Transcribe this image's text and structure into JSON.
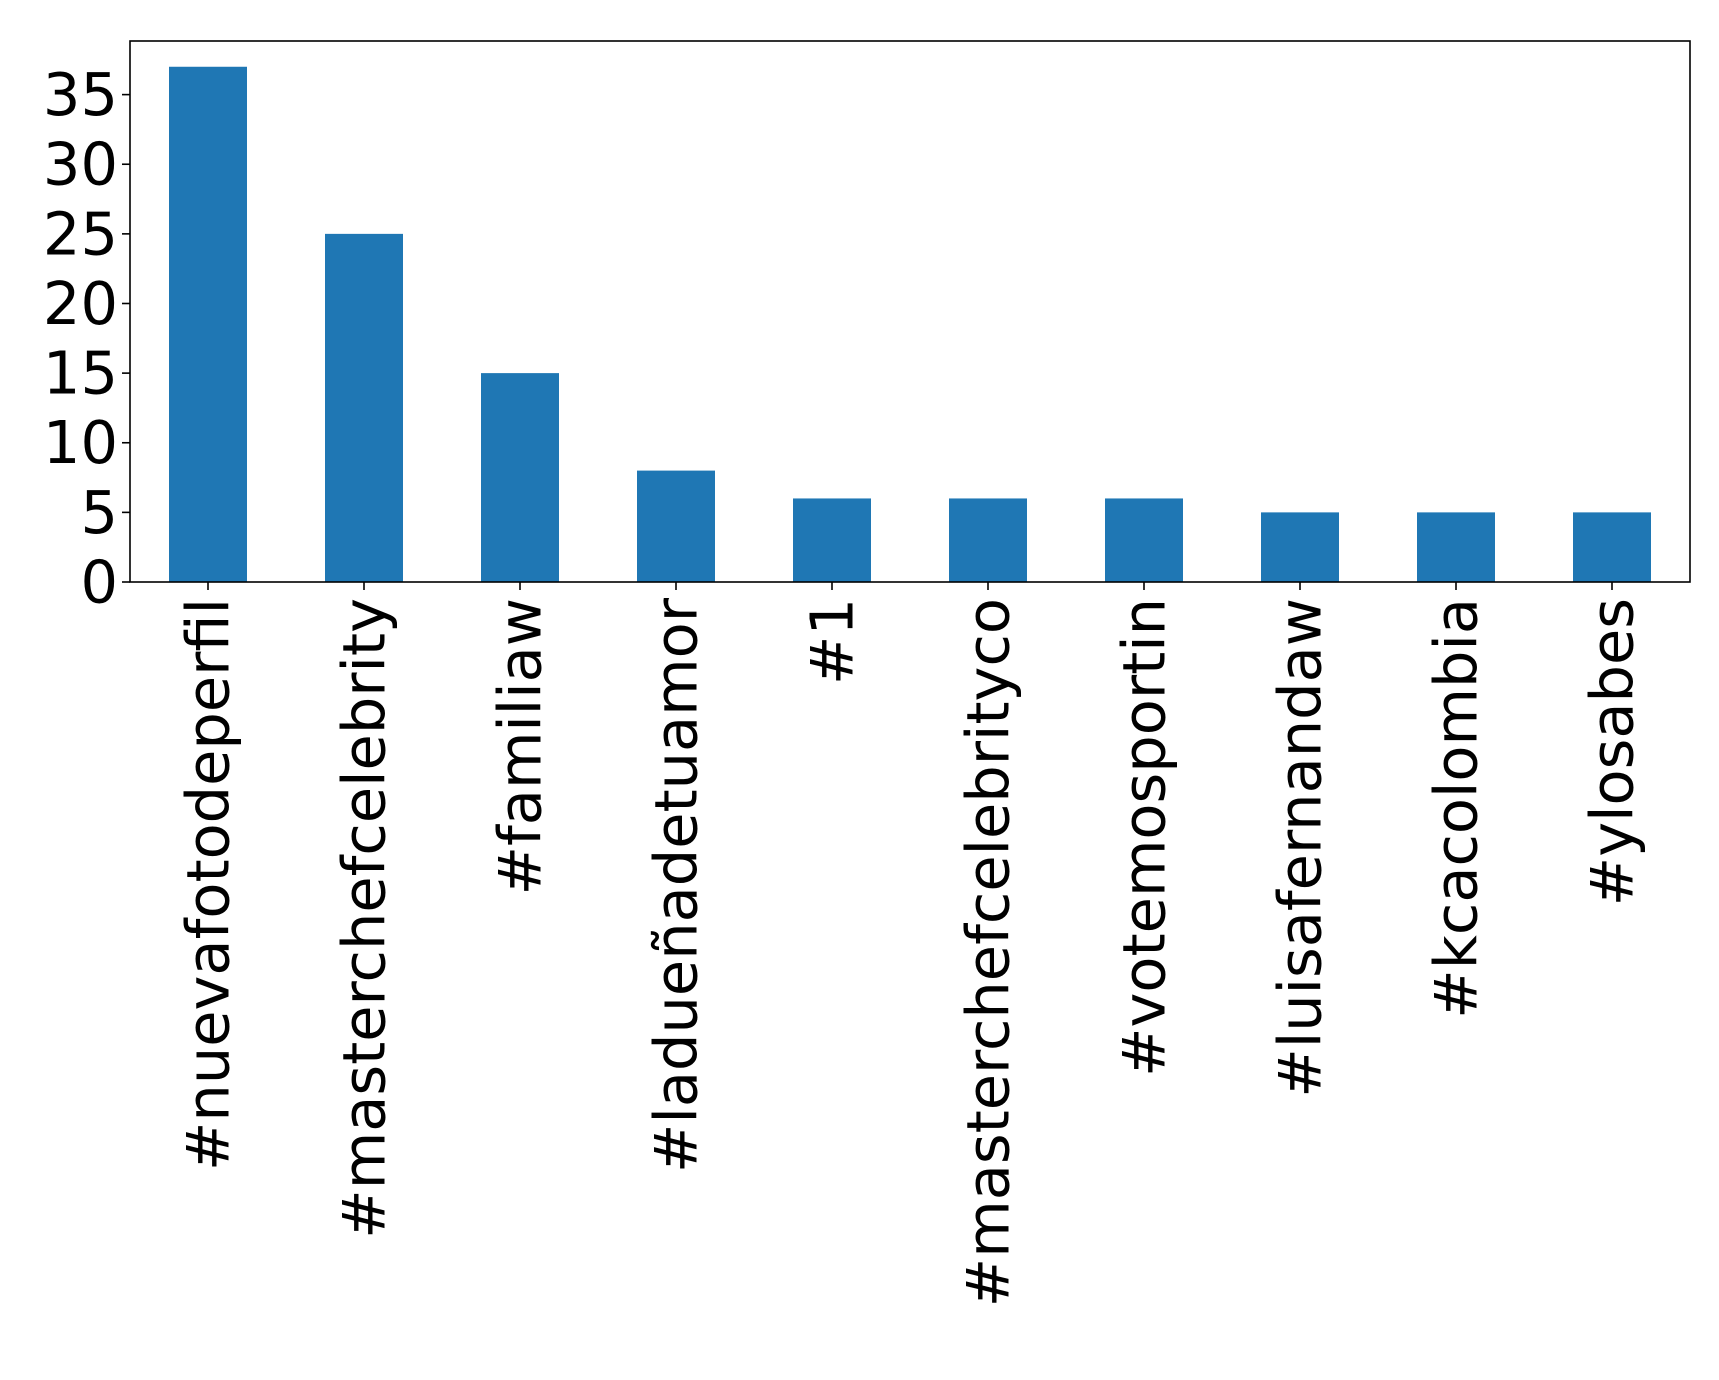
{
  "chart_data": {
    "type": "bar",
    "title": "",
    "xlabel": "",
    "ylabel": "",
    "categories": [
      "#nuevafotodeperfil",
      "#masterchefcelebrity",
      "#familiaw",
      "#ladueñadetuamor",
      "#1",
      "#masterchefcelebrityco",
      "#votemosportin",
      "#luisafernandaw",
      "#kcacolombia",
      "#ylosabes"
    ],
    "values": [
      37,
      25,
      15,
      8,
      6,
      6,
      6,
      5,
      5,
      5
    ],
    "ylim": [
      0,
      38.85
    ],
    "yticks": [
      0,
      5,
      10,
      15,
      20,
      25,
      30,
      35
    ],
    "ytick_labels": [
      "0",
      "5",
      "10",
      "15",
      "20",
      "25",
      "30",
      "35"
    ],
    "bar_color": "#1f77b4",
    "grid": false,
    "legend": "none"
  }
}
